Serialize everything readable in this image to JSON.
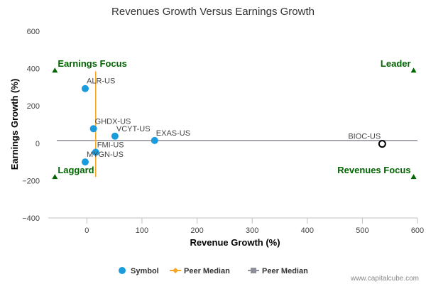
{
  "chart_data": {
    "type": "scatter",
    "title": "Revenues Growth Versus Earnings Growth",
    "xlabel": "Revenue Growth (%)",
    "ylabel": "Earnings Growth (%)",
    "xlim": [
      -70,
      600
    ],
    "ylim": [
      -400,
      600
    ],
    "x_ticks": [
      0,
      100,
      200,
      300,
      400,
      500,
      600
    ],
    "y_ticks": [
      -400,
      -200,
      0,
      200,
      400,
      600
    ],
    "x_tick_labels": [
      "0",
      "100",
      "200",
      "300",
      "400",
      "500",
      "600"
    ],
    "y_tick_labels": [
      "−400",
      "−200",
      "0",
      "200",
      "400",
      "600"
    ],
    "grid": false,
    "points": [
      {
        "label": "ALR-US",
        "x": -3,
        "y": 293,
        "color": "#1a9cdc"
      },
      {
        "label": "GHDX-US",
        "x": 12,
        "y": 78,
        "color": "#1a9cdc"
      },
      {
        "label": "VCYT-US",
        "x": 51,
        "y": 38,
        "color": "#1a9cdc"
      },
      {
        "label": "EXAS-US",
        "x": 123,
        "y": 15,
        "color": "#1a9cdc"
      },
      {
        "label": "FMI-US",
        "x": 16,
        "y": -48,
        "color": "#1a9cdc"
      },
      {
        "label": "MYGN-US",
        "x": -3,
        "y": -100,
        "color": "#1a9cdc"
      },
      {
        "label": "BIOC-US",
        "x": 536,
        "y": -3,
        "color": "#000000",
        "hollow": true
      }
    ],
    "peer_median": {
      "x": 16,
      "y": 15,
      "x_color": "#f5a623",
      "y_color": "#8e9099"
    },
    "quadrants": [
      {
        "label": "Earnings Focus",
        "marker_x": -58,
        "marker_y": 390
      },
      {
        "label": "Leader",
        "marker_x": 593,
        "marker_y": 390
      },
      {
        "label": "Laggard",
        "marker_x": -58,
        "marker_y": -180
      },
      {
        "label": "Revenues Focus",
        "marker_x": 593,
        "marker_y": -180
      }
    ],
    "quadrant_color": "#006400",
    "legend": [
      {
        "name": "Symbol",
        "kind": "dot",
        "color": "#1a9cdc"
      },
      {
        "name": "Peer Median",
        "kind": "line-diamond",
        "color": "#f5a623"
      },
      {
        "name": "Peer Median",
        "kind": "line-square",
        "color": "#8e9099"
      }
    ],
    "legend_position": "bottom-center"
  },
  "credit": "www.capitalcube.com"
}
